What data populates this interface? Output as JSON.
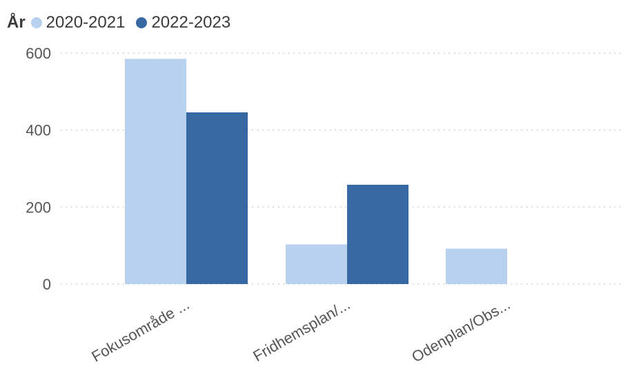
{
  "legend": {
    "title": "År"
  },
  "chart_data": {
    "type": "bar",
    "categories": [
      "Fokusområde ...",
      "Fridhemsplan/...",
      "Odenplan/Obs..."
    ],
    "series": [
      {
        "name": "2020-2021",
        "color": "#b7d1ef",
        "values": [
          585,
          103,
          92
        ]
      },
      {
        "name": "2022-2023",
        "color": "#3669a3",
        "values": [
          446,
          258,
          0
        ]
      }
    ],
    "yticks": [
      0,
      200,
      400,
      600
    ],
    "ylim": [
      0,
      620
    ],
    "grid": true,
    "legend_position": "top-left"
  }
}
